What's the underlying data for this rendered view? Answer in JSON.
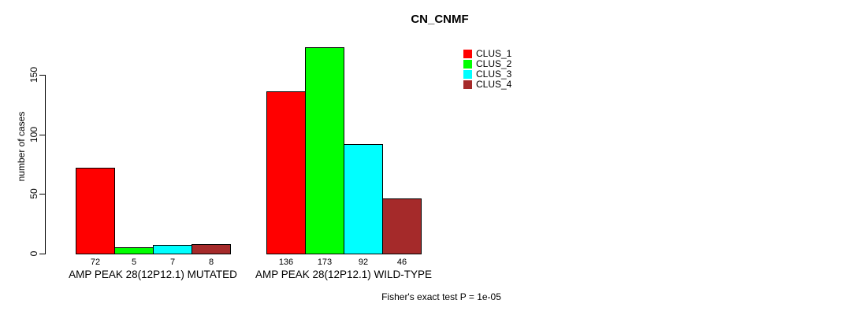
{
  "chart_data": {
    "type": "bar",
    "title": "CN_CNMF",
    "ylabel": "number of cases",
    "xlabel": "",
    "categories": [
      "AMP PEAK 28(12P12.1) MUTATED",
      "AMP PEAK 28(12P12.1) WILD-TYPE"
    ],
    "series": [
      {
        "name": "CLUS_1",
        "color": "#FF0000",
        "values": [
          72,
          136
        ]
      },
      {
        "name": "CLUS_2",
        "color": "#00FF00",
        "values": [
          5,
          173
        ]
      },
      {
        "name": "CLUS_3",
        "color": "#00FFFF",
        "values": [
          7,
          92
        ]
      },
      {
        "name": "CLUS_4",
        "color": "#A52A2A",
        "values": [
          8,
          46
        ]
      }
    ],
    "yticks": [
      0,
      50,
      100,
      150
    ],
    "ylim": [
      0,
      180
    ],
    "grid": false,
    "legend_position": "top-right",
    "bar_value_labels_shown": true,
    "annotation": "Fisher's exact test P = 1e-05"
  },
  "colors": {
    "background": "#FFFFFF",
    "text": "#000000",
    "bar_border": "#000000"
  }
}
